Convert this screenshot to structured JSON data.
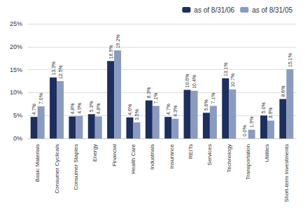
{
  "chart_data": {
    "type": "bar",
    "categories": [
      "Basic Materials",
      "Consumer Cyclicals",
      "Consumer Staples",
      "Energy",
      "Financial",
      "Health Care",
      "Industrials",
      "Insurance",
      "REITs",
      "Services",
      "Technology",
      "Transportation",
      "Utilities",
      "Short-term Investments"
    ],
    "series": [
      {
        "name": "as of 8/31/06",
        "color": "#1c2f5e",
        "values": [
          4.7,
          13.3,
          4.8,
          5.3,
          16.9,
          4.6,
          8.3,
          4.7,
          10.6,
          5.6,
          13.1,
          0.0,
          5.0,
          8.6
        ],
        "value_labels": [
          "4.7%",
          "13.3%",
          "4.8%",
          "5.3%",
          "16.9%",
          "4.6%",
          "8.3%",
          "4.7%",
          "10.6%",
          "5.6%",
          "13.1%",
          "0.0%",
          "5.0%",
          "8.6%"
        ]
      },
      {
        "name": "as of 8/31/05",
        "color": "#8a9bbf",
        "values": [
          7.0,
          12.5,
          4.9,
          4.8,
          19.2,
          3.5,
          7.1,
          4.3,
          10.4,
          7.1,
          10.7,
          1.9,
          3.9,
          15.1
        ],
        "value_labels": [
          "7.0%",
          "12.5%",
          "4.9%",
          "4.8%",
          "19.2%",
          "3.5%",
          "7.1%",
          "4.3%",
          "10.4%",
          "7.1%",
          "10.7%",
          "1.9%",
          "3.9%",
          "15.1%"
        ]
      }
    ],
    "ylim": [
      0,
      25
    ],
    "yticks": [
      {
        "value": 0,
        "label": "0%"
      },
      {
        "value": 5,
        "label": "5%"
      },
      {
        "value": 10,
        "label": "10%"
      },
      {
        "value": 15,
        "label": "15%"
      },
      {
        "value": 20,
        "label": "20%"
      },
      {
        "value": 25,
        "label": "25%"
      }
    ],
    "grid": true,
    "legend": "upper right",
    "data_labels": true
  }
}
